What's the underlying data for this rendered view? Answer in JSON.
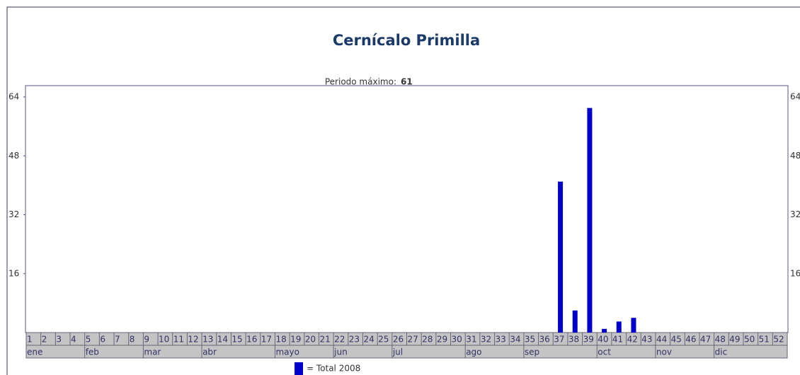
{
  "chart_data": {
    "type": "bar",
    "title": "Cernícalo Primilla",
    "subtitle_label": "Periodo máximo:",
    "subtitle_value": 61,
    "categories": [
      "1",
      "2",
      "3",
      "4",
      "5",
      "6",
      "7",
      "8",
      "9",
      "10",
      "11",
      "12",
      "13",
      "14",
      "15",
      "16",
      "17",
      "18",
      "19",
      "20",
      "21",
      "22",
      "23",
      "24",
      "25",
      "26",
      "27",
      "28",
      "29",
      "30",
      "31",
      "32",
      "33",
      "34",
      "35",
      "36",
      "37",
      "38",
      "39",
      "40",
      "41",
      "42",
      "43",
      "44",
      "45",
      "46",
      "47",
      "48",
      "49",
      "50",
      "51",
      "52"
    ],
    "months": [
      "ene",
      null,
      null,
      null,
      "feb",
      null,
      null,
      null,
      "mar",
      null,
      null,
      null,
      "abr",
      null,
      null,
      null,
      null,
      "mayo",
      null,
      null,
      null,
      "jun",
      null,
      null,
      null,
      "jul",
      null,
      null,
      null,
      null,
      "ago",
      null,
      null,
      null,
      "sep",
      null,
      null,
      null,
      null,
      "oct",
      null,
      null,
      null,
      "nov",
      null,
      null,
      null,
      "dic",
      null,
      null,
      null,
      null
    ],
    "series": [
      {
        "name": "= Total 2008",
        "color": "#0000cc",
        "values": [
          0,
          0,
          0,
          0,
          0,
          0,
          0,
          0,
          0,
          0,
          0,
          0,
          0,
          0,
          0,
          0,
          0,
          0,
          0,
          0,
          0,
          0,
          0,
          0,
          0,
          0,
          0,
          0,
          0,
          0,
          0,
          0,
          0,
          0,
          0,
          0,
          41,
          6,
          61,
          1,
          3,
          4,
          0,
          0,
          0,
          0,
          0,
          0,
          0,
          0,
          0,
          0
        ]
      }
    ],
    "ylim": [
      0,
      64
    ],
    "yticks": [
      16,
      32,
      48,
      64
    ]
  }
}
